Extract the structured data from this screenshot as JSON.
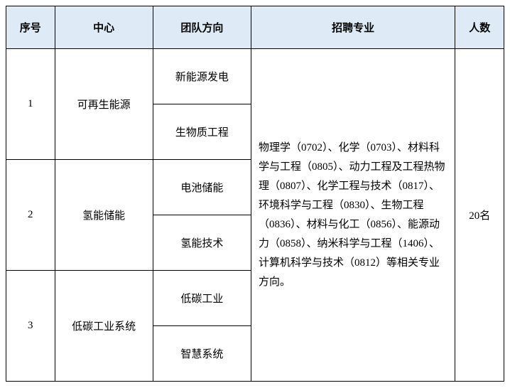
{
  "header": {
    "seq": "序号",
    "center": "中心",
    "team": "团队方向",
    "major": "招聘专业",
    "count": "人数"
  },
  "rows": [
    {
      "seq": "1",
      "center": "可再生能源",
      "teams": [
        "新能源发电",
        "生物质工程"
      ]
    },
    {
      "seq": "2",
      "center": "氢能储能",
      "teams": [
        "电池储能",
        "氢能技术"
      ]
    },
    {
      "seq": "3",
      "center": "低碳工业系统",
      "teams": [
        "低碳工业",
        "智慧系统"
      ]
    }
  ],
  "major_text": "物理学（0702）、化学（0703）、材料科学与工程（0805）、动力工程及工程热物理（0807）、化学工程与技术（0817）、环境科学与工程（0830）、生物工程（0836）、材料与化工（0856）、能源动力（0858）、纳米科学与工程（1406）、计算机科学与技术（0812）等相关专业方向。",
  "count_text": "20名",
  "colors": {
    "header_bg": "#deebf7",
    "border": "#000000",
    "text": "#000000",
    "background": "#ffffff"
  }
}
